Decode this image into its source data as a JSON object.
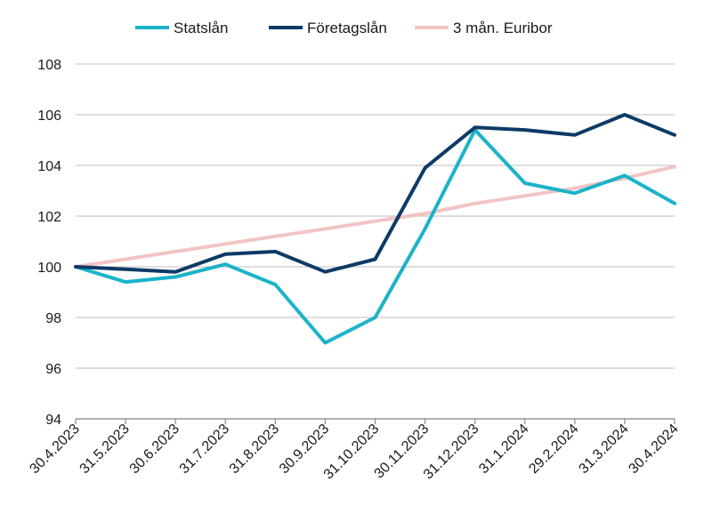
{
  "chart_data": {
    "type": "line",
    "title": "",
    "xlabel": "",
    "ylabel": "",
    "ylim": [
      94,
      108
    ],
    "y_ticks": [
      "94",
      "96",
      "98",
      "100",
      "102",
      "104",
      "106",
      "108"
    ],
    "x_ticks": [
      "30.4.2023",
      "31.5.2023",
      "30.6.2023",
      "31.7.2023",
      "31.8.2023",
      "30.9.2023",
      "31.10.2023",
      "30.11.2023",
      "31.12.2023",
      "31.1.2024",
      "29.2.2024",
      "31.3.2024",
      "30.4.2024"
    ],
    "grid": "horizontal",
    "legend_position": "top",
    "series": [
      {
        "name": "Statslån",
        "color": "#1bb3c9",
        "points": [
          [
            "30.4.2023",
            100.0
          ],
          [
            "31.5.2023",
            99.4
          ],
          [
            "30.6.2023",
            99.6
          ],
          [
            "31.7.2023",
            100.1
          ],
          [
            "31.8.2023",
            99.3
          ],
          [
            "30.9.2023",
            97.0
          ],
          [
            "31.10.2023",
            98.0
          ],
          [
            "30.11.2023",
            101.5
          ],
          [
            "31.12.2023",
            105.4
          ],
          [
            "31.1.2024",
            103.3
          ],
          [
            "29.2.2024",
            102.9
          ],
          [
            "31.3.2024",
            103.6
          ],
          [
            "30.4.2024",
            102.5
          ]
        ]
      },
      {
        "name": "Företagslån",
        "color": "#0d3a66",
        "points": [
          [
            "30.4.2023",
            100.0
          ],
          [
            "31.5.2023",
            99.9
          ],
          [
            "30.6.2023",
            99.8
          ],
          [
            "31.7.2023",
            100.5
          ],
          [
            "31.8.2023",
            100.6
          ],
          [
            "30.9.2023",
            99.8
          ],
          [
            "31.10.2023",
            100.3
          ],
          [
            "30.11.2023",
            103.9
          ],
          [
            "31.12.2023",
            105.5
          ],
          [
            "31.1.2024",
            105.4
          ],
          [
            "29.2.2024",
            105.2
          ],
          [
            "31.3.2024",
            106.0
          ],
          [
            "30.4.2024",
            105.2
          ]
        ]
      },
      {
        "name": "3 mån. Euribor",
        "color": "#f2c4c4",
        "points": [
          [
            "30.4.2023",
            100.0
          ],
          [
            "31.5.2023",
            100.3
          ],
          [
            "30.6.2023",
            100.6
          ],
          [
            "31.7.2023",
            100.9
          ],
          [
            "31.8.2023",
            101.2
          ],
          [
            "30.9.2023",
            101.5
          ],
          [
            "31.10.2023",
            101.8
          ],
          [
            "30.11.2023",
            102.1
          ],
          [
            "31.12.2023",
            102.5
          ],
          [
            "31.1.2024",
            102.8
          ],
          [
            "29.2.2024",
            103.1
          ],
          [
            "31.3.2024",
            103.5
          ],
          [
            "30.4.2024",
            103.95
          ]
        ]
      }
    ]
  }
}
